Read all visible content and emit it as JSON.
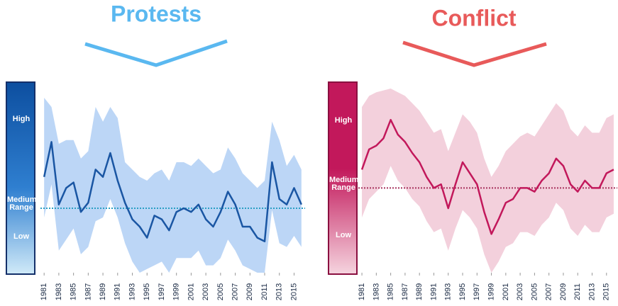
{
  "chart_data": [
    {
      "type": "line",
      "title": "Protests",
      "color": "#1a56a3",
      "band_color": "#bcd6f6",
      "reference_color": "#2a9fc4",
      "scale_labels": [
        "High",
        "Medium Range",
        "Low"
      ],
      "x": [
        1981,
        1982,
        1983,
        1984,
        1985,
        1986,
        1987,
        1988,
        1989,
        1990,
        1991,
        1992,
        1993,
        1994,
        1995,
        1996,
        1997,
        1998,
        1999,
        2000,
        2001,
        2002,
        2003,
        2004,
        2005,
        2006,
        2007,
        2008,
        2009,
        2010,
        2011,
        2012,
        2013,
        2014,
        2015,
        2016
      ],
      "values": [
        52,
        71,
        37,
        46,
        49,
        33,
        38,
        56,
        52,
        65,
        50,
        38,
        29,
        25,
        19,
        31,
        29,
        23,
        33,
        35,
        33,
        37,
        29,
        25,
        33,
        44,
        37,
        25,
        25,
        19,
        17,
        60,
        40,
        37,
        46,
        37
      ],
      "band_high": [
        95,
        90,
        70,
        72,
        72,
        62,
        66,
        90,
        82,
        90,
        84,
        60,
        56,
        52,
        50,
        54,
        56,
        50,
        60,
        60,
        58,
        62,
        58,
        54,
        56,
        68,
        62,
        54,
        50,
        46,
        50,
        82,
        72,
        58,
        64,
        56
      ],
      "band_low": [
        30,
        48,
        12,
        18,
        24,
        10,
        14,
        28,
        30,
        40,
        30,
        16,
        6,
        0,
        2,
        4,
        6,
        0,
        8,
        8,
        8,
        12,
        4,
        4,
        8,
        18,
        12,
        4,
        2,
        0,
        0,
        34,
        16,
        14,
        20,
        14
      ],
      "reference": 35,
      "xlim": [
        1980.5,
        2016.5
      ],
      "ylim": [
        0,
        100
      ],
      "xticks": [
        1981,
        1983,
        1985,
        1987,
        1989,
        1991,
        1993,
        1995,
        1997,
        1999,
        2001,
        2003,
        2005,
        2007,
        2009,
        2011,
        2013,
        2015
      ]
    },
    {
      "type": "line",
      "title": "Conflict",
      "color": "#c2185b",
      "band_color": "#f3d0dc",
      "reference_color": "#a8335e",
      "scale_labels": [
        "High",
        "Medium Range",
        "Low"
      ],
      "x": [
        1981,
        1982,
        1983,
        1984,
        1985,
        1986,
        1987,
        1988,
        1989,
        1990,
        1991,
        1992,
        1993,
        1994,
        1995,
        1996,
        1997,
        1998,
        1999,
        2000,
        2001,
        2002,
        2003,
        2004,
        2005,
        2006,
        2007,
        2008,
        2009,
        2010,
        2011,
        2012,
        2013,
        2014,
        2015,
        2016
      ],
      "values": [
        56,
        67,
        69,
        73,
        83,
        75,
        71,
        65,
        60,
        52,
        46,
        48,
        35,
        48,
        60,
        54,
        48,
        33,
        21,
        29,
        38,
        40,
        46,
        46,
        44,
        50,
        54,
        62,
        58,
        48,
        44,
        50,
        46,
        46,
        54,
        56
      ],
      "band_high": [
        90,
        96,
        98,
        99,
        100,
        98,
        96,
        92,
        88,
        82,
        76,
        78,
        66,
        76,
        86,
        82,
        76,
        62,
        52,
        58,
        66,
        70,
        74,
        76,
        74,
        80,
        86,
        92,
        88,
        78,
        74,
        80,
        76,
        76,
        84,
        86
      ],
      "band_low": [
        30,
        40,
        44,
        48,
        58,
        50,
        46,
        40,
        36,
        28,
        22,
        24,
        12,
        24,
        34,
        30,
        24,
        10,
        0,
        6,
        14,
        16,
        22,
        22,
        20,
        26,
        30,
        38,
        34,
        24,
        20,
        26,
        22,
        22,
        30,
        32
      ],
      "reference": 46,
      "xlim": [
        1980.5,
        2016.5
      ],
      "ylim": [
        0,
        100
      ],
      "xticks": [
        1981,
        1983,
        1985,
        1987,
        1989,
        1991,
        1993,
        1995,
        1997,
        1999,
        2001,
        2003,
        2005,
        2007,
        2009,
        2011,
        2013,
        2015
      ]
    }
  ]
}
